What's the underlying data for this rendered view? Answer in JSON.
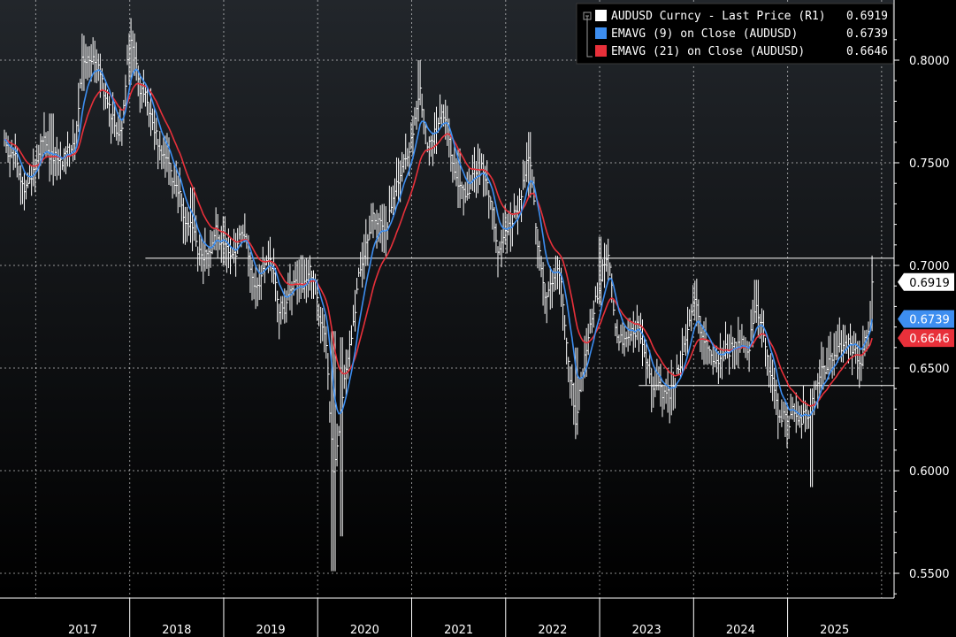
{
  "colors": {
    "background_top": "#22262b",
    "background_bottom": "#000000",
    "price": "#ffffff",
    "ema9": "#3d8ef0",
    "ema21": "#e8303a",
    "grid": "#ffffff",
    "axis_band": "#000000"
  },
  "chart_data": {
    "type": "line",
    "title": "",
    "xlabel": "",
    "ylabel": "",
    "x_tick_labels": [
      "2017",
      "2018",
      "2019",
      "2020",
      "2021",
      "2022",
      "2023",
      "2024",
      "2025"
    ],
    "y_ticks": [
      "0.5500",
      "0.6000",
      "0.6500",
      "0.7000",
      "0.7500",
      "0.8000"
    ],
    "ylim": [
      0.535,
      0.825
    ],
    "xlim": [
      "2016-09",
      "2025-12"
    ],
    "grid": true,
    "legend_position": "top-right",
    "legend": [
      {
        "label": "AUDUSD Curncy - Last Price (R1)",
        "value": "0.6919",
        "color": "#ffffff"
      },
      {
        "label": "EMAVG (9)  on Close (AUDUSD)",
        "value": "0.6739",
        "color": "#3d8ef0"
      },
      {
        "label": "EMAVG (21)  on Close (AUDUSD)",
        "value": "0.6646",
        "color": "#e8303a"
      }
    ],
    "last_value_badges": [
      {
        "value": "0.6919",
        "color": "#ffffff",
        "text_color": "#000000",
        "y": 0.6919
      },
      {
        "value": "0.6739",
        "color": "#3d8ef0",
        "text_color": "#ffffff",
        "y": 0.6739
      },
      {
        "value": "0.6646",
        "color": "#e8303a",
        "text_color": "#ffffff",
        "y": 0.6646
      }
    ],
    "horizontal_lines": [
      {
        "y": 0.7035,
        "from": "2018-03",
        "to": "2025-12"
      },
      {
        "y": 0.6415,
        "from": "2023-06",
        "to": "2025-12"
      }
    ],
    "series": [
      {
        "name": "AUDUSD Curncy - Last Price (R1)",
        "kind": "hlc-bars",
        "color": "#ffffff",
        "anchors": [
          [
            "2016-09",
            0.758
          ],
          [
            "2016-12",
            0.738
          ],
          [
            "2017-02",
            0.762
          ],
          [
            "2017-04",
            0.752
          ],
          [
            "2017-06",
            0.757
          ],
          [
            "2017-07",
            0.798
          ],
          [
            "2017-09",
            0.793
          ],
          [
            "2017-10",
            0.78
          ],
          [
            "2017-12",
            0.76
          ],
          [
            "2018-01",
            0.81
          ],
          [
            "2018-02",
            0.79
          ],
          [
            "2018-04",
            0.77
          ],
          [
            "2018-06",
            0.741
          ],
          [
            "2018-08",
            0.725
          ],
          [
            "2018-10",
            0.705
          ],
          [
            "2018-12",
            0.715
          ],
          [
            "2019-02",
            0.712
          ],
          [
            "2019-03",
            0.712
          ],
          [
            "2019-05",
            0.695
          ],
          [
            "2019-07",
            0.7
          ],
          [
            "2019-08",
            0.675
          ],
          [
            "2019-10",
            0.69
          ],
          [
            "2019-12",
            0.698
          ],
          [
            "2020-01",
            0.68
          ],
          [
            "2020-02",
            0.66
          ],
          [
            "2020-03",
            0.6
          ],
          [
            "2020-04",
            0.64
          ],
          [
            "2020-06",
            0.69
          ],
          [
            "2020-08",
            0.72
          ],
          [
            "2020-09",
            0.715
          ],
          [
            "2020-11",
            0.735
          ],
          [
            "2021-01",
            0.77
          ],
          [
            "2021-02",
            0.79
          ],
          [
            "2021-03",
            0.76
          ],
          [
            "2021-05",
            0.775
          ],
          [
            "2021-06",
            0.755
          ],
          [
            "2021-08",
            0.73
          ],
          [
            "2021-10",
            0.745
          ],
          [
            "2021-11",
            0.725
          ],
          [
            "2021-12",
            0.705
          ],
          [
            "2022-02",
            0.72
          ],
          [
            "2022-04",
            0.75
          ],
          [
            "2022-05",
            0.705
          ],
          [
            "2022-06",
            0.69
          ],
          [
            "2022-08",
            0.7
          ],
          [
            "2022-09",
            0.665
          ],
          [
            "2022-10",
            0.63
          ],
          [
            "2022-12",
            0.68
          ],
          [
            "2023-02",
            0.705
          ],
          [
            "2023-03",
            0.665
          ],
          [
            "2023-05",
            0.66
          ],
          [
            "2023-06",
            0.672
          ],
          [
            "2023-08",
            0.645
          ],
          [
            "2023-10",
            0.632
          ],
          [
            "2023-12",
            0.668
          ],
          [
            "2024-01",
            0.68
          ],
          [
            "2024-03",
            0.655
          ],
          [
            "2024-04",
            0.65
          ],
          [
            "2024-06",
            0.665
          ],
          [
            "2024-08",
            0.665
          ],
          [
            "2024-09",
            0.69
          ],
          [
            "2024-10",
            0.665
          ],
          [
            "2024-12",
            0.623
          ],
          [
            "2025-01",
            0.625
          ],
          [
            "2025-02",
            0.63
          ],
          [
            "2025-04",
            0.63
          ],
          [
            "2025-05",
            0.645
          ],
          [
            "2025-07",
            0.655
          ],
          [
            "2025-09",
            0.662
          ],
          [
            "2025-10",
            0.655
          ],
          [
            "2025-11",
            0.666
          ],
          [
            "2025-12",
            0.692
          ]
        ],
        "spikes": [
          [
            "2017-03",
            0.774,
            0.755
          ],
          [
            "2017-07",
            0.812,
            0.785
          ],
          [
            "2018-01",
            0.813,
            0.788
          ],
          [
            "2018-09",
            0.738,
            0.712
          ],
          [
            "2019-01",
            0.724,
            0.7
          ],
          [
            "2019-11",
            0.705,
            0.688
          ],
          [
            "2020-03",
            0.668,
            0.551
          ],
          [
            "2020-04",
            0.665,
            0.568
          ],
          [
            "2021-02",
            0.8,
            0.778
          ],
          [
            "2021-07",
            0.757,
            0.728
          ],
          [
            "2022-04",
            0.765,
            0.733
          ],
          [
            "2022-10",
            0.66,
            0.618
          ],
          [
            "2023-01",
            0.714,
            0.69
          ],
          [
            "2023-10",
            0.64,
            0.627
          ],
          [
            "2024-09",
            0.693,
            0.672
          ],
          [
            "2025-04",
            0.64,
            0.592
          ],
          [
            "2025-12",
            0.693,
            0.668
          ]
        ]
      },
      {
        "name": "EMAVG (9)  on Close (AUDUSD)",
        "kind": "ema",
        "period": 9,
        "color": "#3d8ef0",
        "last_value": 0.6739
      },
      {
        "name": "EMAVG (21)  on Close (AUDUSD)",
        "kind": "ema",
        "period": 21,
        "color": "#e8303a",
        "last_value": 0.6646
      }
    ]
  }
}
